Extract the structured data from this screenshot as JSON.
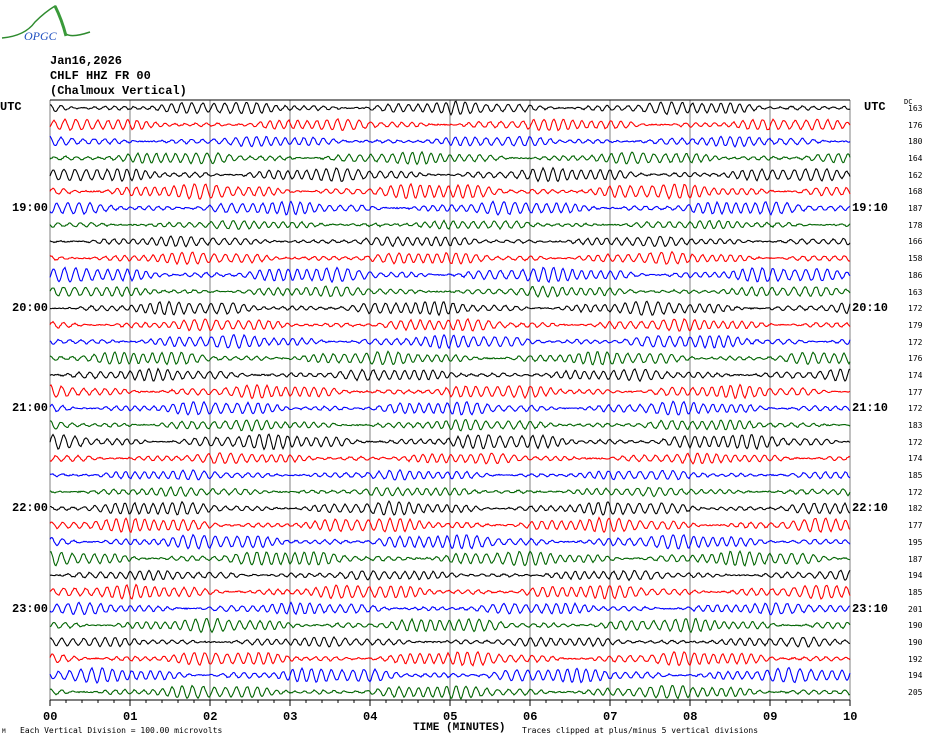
{
  "logo_text": "OPGC",
  "header": {
    "date": "Jan16,2026",
    "station": "CHLF HHZ FR 00",
    "description": "(Chalmoux Vertical)"
  },
  "chart_data": {
    "type": "line",
    "subtype": "helicorder",
    "xlabel": "TIME (MINUTES)",
    "xlim": [
      0,
      10
    ],
    "x_ticks": [
      "00",
      "01",
      "02",
      "03",
      "04",
      "05",
      "06",
      "07",
      "08",
      "09",
      "10"
    ],
    "grid": "vertical lines every minute",
    "left_axis_title": "UTC",
    "right_axis_title": "UTC",
    "dc_title": "DC",
    "left_labels": [
      {
        "row": 6,
        "text": "19:00"
      },
      {
        "row": 12,
        "text": "20:00"
      },
      {
        "row": 18,
        "text": "21:00"
      },
      {
        "row": 24,
        "text": "22:00"
      },
      {
        "row": 30,
        "text": "23:00"
      }
    ],
    "right_labels": [
      {
        "row": 6,
        "text": "19:10"
      },
      {
        "row": 12,
        "text": "20:10"
      },
      {
        "row": 18,
        "text": "21:10"
      },
      {
        "row": 24,
        "text": "22:10"
      },
      {
        "row": 30,
        "text": "23:10"
      }
    ],
    "dc_values": [
      163,
      176,
      180,
      164,
      162,
      168,
      187,
      178,
      166,
      158,
      186,
      163,
      172,
      179,
      172,
      176,
      174,
      177,
      172,
      183,
      172,
      174,
      185,
      172,
      182,
      177,
      195,
      187,
      194,
      185,
      201,
      190,
      190,
      192,
      194,
      205
    ],
    "trace_colors": [
      "#000000",
      "#ff0000",
      "#0000ff",
      "#006400"
    ],
    "footer_left": "Each Vertical Division =  100.00 microvolts",
    "footer_right": "Traces clipped at plus/minus 5 vertical divisions",
    "corner_mark": "M"
  }
}
